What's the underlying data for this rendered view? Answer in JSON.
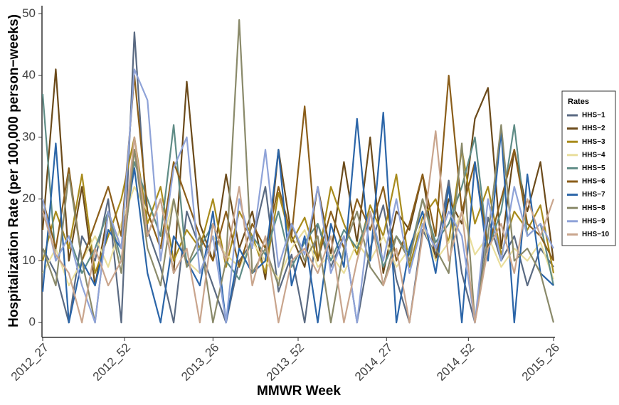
{
  "chart_data": {
    "type": "line",
    "x_label": "MMWR Week",
    "y_label": "Hospitalization Rate (per 100,000 person−weeks)",
    "legend_title": "Rates",
    "legend": "right",
    "x": [
      0,
      4,
      8,
      12,
      16,
      20,
      24,
      28,
      32,
      36,
      40,
      44,
      48,
      52,
      56,
      60,
      64,
      68,
      72,
      76,
      80,
      84,
      88,
      92,
      96,
      100,
      104,
      108,
      112,
      116,
      120,
      124,
      128,
      132,
      136,
      140,
      144,
      148,
      152,
      156
    ],
    "xlim": [
      0,
      156
    ],
    "xticks": [
      {
        "value": 0,
        "label": "2012_27"
      },
      {
        "value": 25,
        "label": "2012_52"
      },
      {
        "value": 52,
        "label": "2013_26"
      },
      {
        "value": 78,
        "label": "2013_52"
      },
      {
        "value": 105,
        "label": "2014_27"
      },
      {
        "value": 130,
        "label": "2014_52"
      },
      {
        "value": 156,
        "label": "2015_26"
      }
    ],
    "ylim": [
      -2.4,
      51.3
    ],
    "yticks": [
      0,
      10,
      20,
      30,
      40,
      50
    ],
    "series": [
      {
        "name": "HHS−1",
        "color": "#5a6a82",
        "values": [
          12,
          8,
          0,
          14,
          10,
          20,
          0,
          47,
          15,
          9,
          0,
          18,
          12,
          6,
          0,
          10,
          13,
          22,
          5,
          11,
          0,
          16,
          9,
          14,
          0,
          12,
          19,
          7,
          0,
          15,
          11,
          23,
          8,
          0,
          17,
          10,
          14,
          6,
          12,
          9
        ]
      },
      {
        "name": "HHS−2",
        "color": "#6b4a1a",
        "values": [
          15,
          41,
          10,
          22,
          6,
          18,
          12,
          28,
          14,
          20,
          8,
          39,
          16,
          10,
          24,
          12,
          18,
          7,
          28,
          14,
          9,
          22,
          11,
          26,
          13,
          30,
          8,
          18,
          15,
          24,
          10,
          20,
          16,
          33,
          38,
          12,
          28,
          18,
          26,
          10
        ]
      },
      {
        "name": "HHS−3",
        "color": "#a88b1c",
        "values": [
          10,
          18,
          12,
          24,
          8,
          14,
          20,
          30,
          16,
          22,
          10,
          15,
          12,
          20,
          9,
          18,
          14,
          8,
          21,
          13,
          17,
          10,
          22,
          16,
          11,
          19,
          14,
          24,
          9,
          17,
          20,
          13,
          28,
          16,
          22,
          11,
          18,
          15,
          19,
          8
        ]
      },
      {
        "name": "HHS−4",
        "color": "#e9de9c",
        "values": [
          8,
          12,
          6,
          10,
          14,
          9,
          16,
          22,
          18,
          12,
          20,
          10,
          8,
          14,
          11,
          9,
          13,
          10,
          7,
          12,
          15,
          9,
          11,
          8,
          13,
          10,
          14,
          9,
          12,
          16,
          10,
          13,
          18,
          11,
          14,
          9,
          12,
          10,
          13,
          7
        ]
      },
      {
        "name": "HHS−5",
        "color": "#5f8c86",
        "values": [
          37,
          10,
          14,
          8,
          12,
          18,
          10,
          26,
          20,
          14,
          32,
          9,
          12,
          16,
          10,
          7,
          14,
          11,
          18,
          9,
          13,
          16,
          10,
          15,
          12,
          18,
          9,
          14,
          11,
          20,
          13,
          16,
          22,
          30,
          12,
          18,
          32,
          14,
          16,
          6
        ]
      },
      {
        "name": "HHS−6",
        "color": "#8b5e1a",
        "values": [
          20,
          12,
          25,
          10,
          16,
          22,
          14,
          40,
          18,
          12,
          26,
          20,
          14,
          10,
          18,
          9,
          16,
          12,
          22,
          14,
          35,
          10,
          18,
          12,
          20,
          15,
          22,
          10,
          16,
          24,
          14,
          40,
          18,
          26,
          12,
          20,
          28,
          16,
          14,
          10
        ]
      },
      {
        "name": "HHS−7",
        "color": "#2b65a8",
        "values": [
          5,
          29,
          0,
          10,
          6,
          15,
          12,
          25,
          8,
          0,
          14,
          10,
          6,
          18,
          0,
          12,
          8,
          10,
          28,
          6,
          14,
          0,
          16,
          9,
          33,
          10,
          34,
          0,
          12,
          18,
          8,
          22,
          0,
          26,
          10,
          31,
          0,
          24,
          8,
          6
        ]
      },
      {
        "name": "HHS−8",
        "color": "#8a8a6a",
        "values": [
          12,
          6,
          24,
          10,
          0,
          18,
          8,
          28,
          12,
          6,
          20,
          9,
          14,
          0,
          10,
          49,
          8,
          12,
          6,
          16,
          10,
          14,
          0,
          12,
          18,
          9,
          6,
          14,
          10,
          20,
          12,
          8,
          29,
          0,
          14,
          32,
          10,
          12,
          8,
          0
        ]
      },
      {
        "name": "HHS−9",
        "color": "#8fa3d8",
        "values": [
          20,
          10,
          14,
          6,
          0,
          18,
          12,
          41,
          36,
          10,
          25,
          30,
          8,
          14,
          0,
          20,
          12,
          28,
          9,
          16,
          11,
          22,
          8,
          14,
          0,
          18,
          10,
          20,
          8,
          16,
          12,
          18,
          14,
          0,
          20,
          10,
          22,
          14,
          16,
          12
        ]
      },
      {
        "name": "HHS−10",
        "color": "#c9a58d",
        "values": [
          18,
          11,
          8,
          0,
          12,
          6,
          10,
          30,
          14,
          20,
          8,
          12,
          0,
          16,
          10,
          22,
          6,
          14,
          0,
          10,
          12,
          8,
          14,
          0,
          10,
          18,
          6,
          12,
          0,
          14,
          31,
          10,
          18,
          0,
          12,
          16,
          8,
          20,
          14,
          20
        ]
      }
    ]
  }
}
